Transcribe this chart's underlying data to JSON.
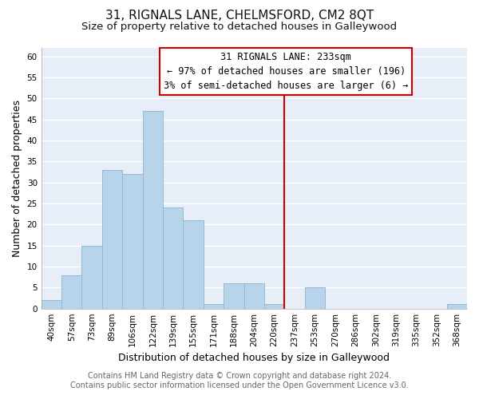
{
  "title": "31, RIGNALS LANE, CHELMSFORD, CM2 8QT",
  "subtitle": "Size of property relative to detached houses in Galleywood",
  "xlabel": "Distribution of detached houses by size in Galleywood",
  "ylabel": "Number of detached properties",
  "bar_labels": [
    "40sqm",
    "57sqm",
    "73sqm",
    "89sqm",
    "106sqm",
    "122sqm",
    "139sqm",
    "155sqm",
    "171sqm",
    "188sqm",
    "204sqm",
    "220sqm",
    "237sqm",
    "253sqm",
    "270sqm",
    "286sqm",
    "302sqm",
    "319sqm",
    "335sqm",
    "352sqm",
    "368sqm"
  ],
  "bar_heights": [
    2,
    8,
    15,
    33,
    32,
    47,
    24,
    21,
    1,
    6,
    6,
    1,
    0,
    5,
    0,
    0,
    0,
    0,
    0,
    0,
    1
  ],
  "bar_color": "#b8d4ea",
  "bar_edge_color": "#90b8d8",
  "vline_x_index": 12,
  "vline_color": "#cc0000",
  "ylim": [
    0,
    62
  ],
  "yticks": [
    0,
    5,
    10,
    15,
    20,
    25,
    30,
    35,
    40,
    45,
    50,
    55,
    60
  ],
  "annotation_title": "31 RIGNALS LANE: 233sqm",
  "annotation_line1": "← 97% of detached houses are smaller (196)",
  "annotation_line2": "3% of semi-detached houses are larger (6) →",
  "footer_line1": "Contains HM Land Registry data © Crown copyright and database right 2024.",
  "footer_line2": "Contains public sector information licensed under the Open Government Licence v3.0.",
  "background_color": "#ffffff",
  "plot_bg_color": "#e8eef8",
  "grid_color": "#ffffff",
  "title_fontsize": 11,
  "subtitle_fontsize": 9.5,
  "axis_label_fontsize": 9,
  "tick_fontsize": 7.5,
  "footer_fontsize": 7,
  "ann_fontsize": 8.5
}
